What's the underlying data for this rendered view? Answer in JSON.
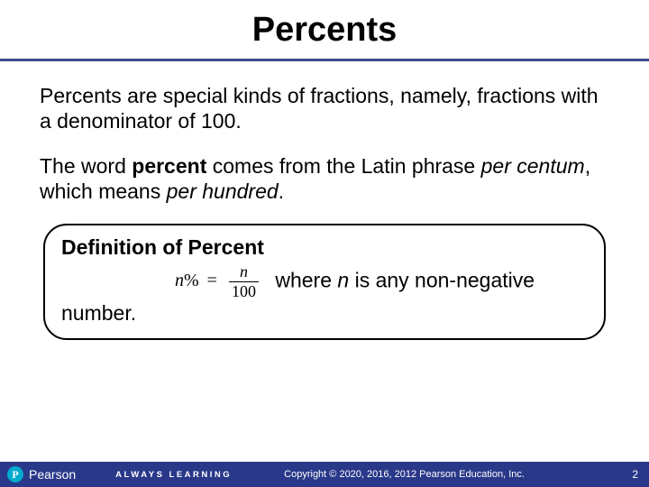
{
  "colors": {
    "divider": "#3a4a8c",
    "footer_bg": "#2a388a",
    "footer_text": "#ffffff",
    "logo_circle": "#00a9ce",
    "text": "#000000",
    "background": "#ffffff"
  },
  "title": "Percents",
  "para1_a": "Percents are special kinds of fractions, namely, fractions with a denominator of 100.",
  "para2_a": "The word ",
  "para2_bold": "percent",
  "para2_b": " comes from the Latin phrase ",
  "para2_italic1": "per centum",
  "para2_c": ", which means ",
  "para2_italic2": "per hundred",
  "para2_d": ".",
  "def_title": "Definition of Percent",
  "formula": {
    "lhs_var": "n",
    "lhs_sym": "%",
    "eq": "=",
    "num": "n",
    "den": "100"
  },
  "where_a": "where ",
  "where_var": "n",
  "where_b": " is any non-negative",
  "where_tail": "number.",
  "footer": {
    "logo_letter": "P",
    "brand": "Pearson",
    "tagline": "ALWAYS LEARNING",
    "copyright": "Copyright © 2020, 2016, 2012 Pearson Education, Inc.",
    "page": "2"
  }
}
